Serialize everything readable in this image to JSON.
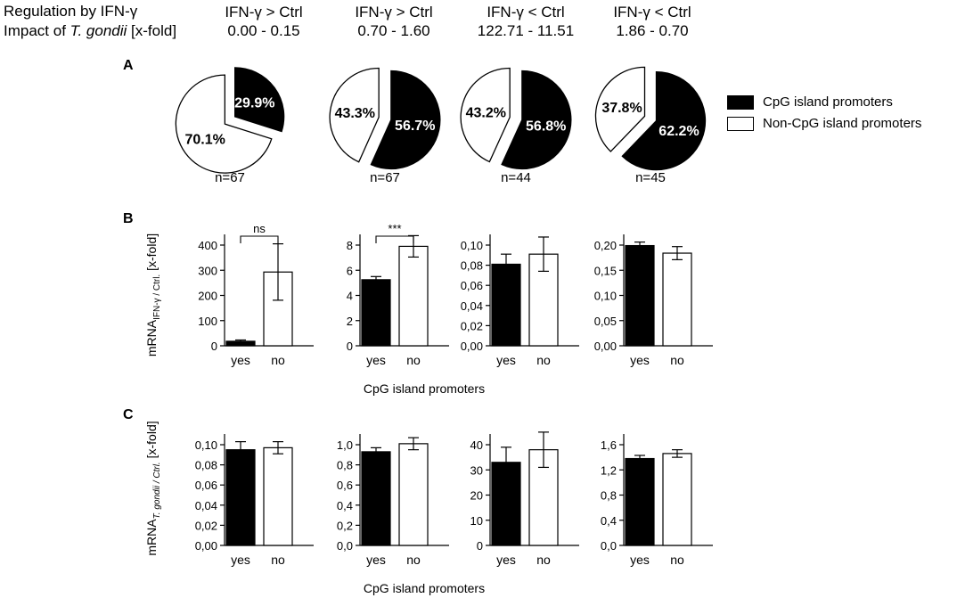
{
  "header": {
    "row_label_1": "Regulation by IFN-γ",
    "row_label_2_prefix": "Impact of ",
    "row_label_2_italic": "T. gondii",
    "row_label_2_suffix": " [x-fold]",
    "columns": [
      {
        "regulation": "IFN-γ > Ctrl",
        "impact": "0.00 - 0.15"
      },
      {
        "regulation": "IFN-γ > Ctrl",
        "impact": "0.70 - 1.60"
      },
      {
        "regulation": "IFN-γ < Ctrl",
        "impact": "122.71 - 11.51"
      },
      {
        "regulation": "IFN-γ < Ctrl",
        "impact": "1.86 - 0.70"
      }
    ]
  },
  "panels": {
    "a": "A",
    "b": "B",
    "c": "C"
  },
  "legend": {
    "cpg": "CpG island promoters",
    "non_cpg": "Non-CpG island promoters",
    "colors": {
      "cpg": "#000000",
      "non_cpg": "#ffffff"
    }
  },
  "chart_data": [
    {
      "type": "pie",
      "panel": "A",
      "charts": [
        {
          "cpg_pct": 29.9,
          "non_cpg_pct": 70.1,
          "cpg_label": "29.9%",
          "non_cpg_label": "70.1%",
          "n_label": "n=67"
        },
        {
          "cpg_pct": 56.7,
          "non_cpg_pct": 43.3,
          "cpg_label": "56.7%",
          "non_cpg_label": "43.3%",
          "n_label": "n=67"
        },
        {
          "cpg_pct": 56.8,
          "non_cpg_pct": 43.2,
          "cpg_label": "56.8%",
          "non_cpg_label": "43.2%",
          "n_label": "n=44"
        },
        {
          "cpg_pct": 62.2,
          "non_cpg_pct": 37.8,
          "cpg_label": "62.2%",
          "non_cpg_label": "37.8%",
          "n_label": "n=45"
        }
      ]
    },
    {
      "type": "bar",
      "panel": "B",
      "ylabel_main": "mRNA",
      "ylabel_sub": "IFN-γ / Ctrl.",
      "ylabel_suffix": " [x-fold]",
      "xlabel": "CpG island promoters",
      "categories": [
        "yes",
        "no"
      ],
      "charts": [
        {
          "values": [
            18,
            293
          ],
          "errors": [
            5,
            112
          ],
          "ylim": [
            0,
            400
          ],
          "ticks": [
            "0",
            "100",
            "200",
            "300",
            "400"
          ],
          "tick_values": [
            0,
            100,
            200,
            300,
            400
          ],
          "sig": "ns"
        },
        {
          "values": [
            5.25,
            7.9
          ],
          "errors": [
            0.25,
            0.85
          ],
          "ylim": [
            0,
            8
          ],
          "ticks": [
            "0",
            "2",
            "4",
            "6",
            "8"
          ],
          "tick_values": [
            0,
            2,
            4,
            6,
            8
          ],
          "sig": "***"
        },
        {
          "values": [
            0.081,
            0.091
          ],
          "errors": [
            0.01,
            0.017
          ],
          "ylim": [
            0,
            0.1
          ],
          "ticks": [
            "0,00",
            "0,02",
            "0,04",
            "0,06",
            "0,08",
            "0,10"
          ],
          "tick_values": [
            0,
            0.02,
            0.04,
            0.06,
            0.08,
            0.1
          ],
          "sig": ""
        },
        {
          "values": [
            0.199,
            0.184
          ],
          "errors": [
            0.007,
            0.013
          ],
          "ylim": [
            0,
            0.2
          ],
          "ticks": [
            "0,00",
            "0,05",
            "0,10",
            "0,15",
            "0,20"
          ],
          "tick_values": [
            0,
            0.05,
            0.1,
            0.15,
            0.2
          ],
          "sig": ""
        }
      ]
    },
    {
      "type": "bar",
      "panel": "C",
      "ylabel_main": "mRNA",
      "ylabel_sub": "T. gondii / Ctrl.",
      "ylabel_suffix": " [x-fold]",
      "xlabel": "CpG island promoters",
      "categories": [
        "yes",
        "no"
      ],
      "charts": [
        {
          "values": [
            0.095,
            0.097
          ],
          "errors": [
            0.008,
            0.006
          ],
          "ylim": [
            0,
            0.1
          ],
          "ticks": [
            "0,00",
            "0,02",
            "0,04",
            "0,06",
            "0,08",
            "0,10"
          ],
          "tick_values": [
            0,
            0.02,
            0.04,
            0.06,
            0.08,
            0.1
          ],
          "sig": ""
        },
        {
          "values": [
            0.93,
            1.01
          ],
          "errors": [
            0.04,
            0.06
          ],
          "ylim": [
            0,
            1.0
          ],
          "ticks": [
            "0,0",
            "0,2",
            "0,4",
            "0,6",
            "0,8",
            "1,0"
          ],
          "tick_values": [
            0,
            0.2,
            0.4,
            0.6,
            0.8,
            1.0
          ],
          "sig": ""
        },
        {
          "values": [
            33,
            38
          ],
          "errors": [
            6,
            7
          ],
          "ylim": [
            0,
            40
          ],
          "ticks": [
            "0",
            "10",
            "20",
            "30",
            "40"
          ],
          "tick_values": [
            0,
            10,
            20,
            30,
            40
          ],
          "sig": ""
        },
        {
          "values": [
            1.38,
            1.46
          ],
          "errors": [
            0.05,
            0.06
          ],
          "ylim": [
            0,
            1.6
          ],
          "ticks": [
            "0,0",
            "0,4",
            "0,8",
            "1,2",
            "1,6"
          ],
          "tick_values": [
            0,
            0.4,
            0.8,
            1.2,
            1.6
          ],
          "sig": ""
        }
      ]
    }
  ]
}
